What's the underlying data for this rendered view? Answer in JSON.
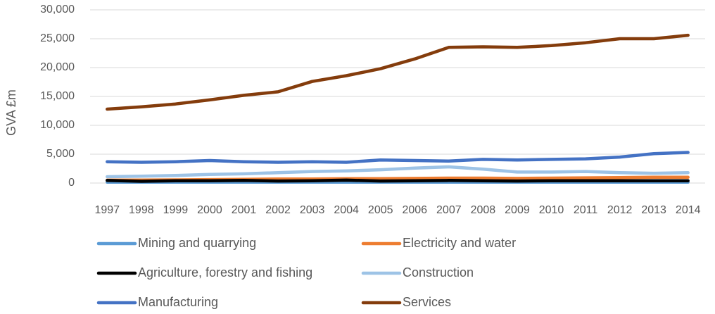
{
  "chart_data": {
    "type": "line",
    "ylabel": "GVA £m",
    "ylim": [
      0,
      30000
    ],
    "y_ticks": [
      "0",
      "5,000",
      "10,000",
      "15,000",
      "20,000",
      "25,000",
      "30,000"
    ],
    "y_tick_values": [
      0,
      5000,
      10000,
      15000,
      20000,
      25000,
      30000
    ],
    "grid": true,
    "legend_placement": "bottom",
    "categories": [
      "1997",
      "1998",
      "1999",
      "2000",
      "2001",
      "2002",
      "2003",
      "2004",
      "2005",
      "2006",
      "2007",
      "2008",
      "2009",
      "2010",
      "2011",
      "2012",
      "2013",
      "2014"
    ],
    "series": [
      {
        "name": "Mining and quarrying",
        "color": "#5b9bd5",
        "values": [
          150,
          150,
          150,
          150,
          150,
          150,
          150,
          150,
          150,
          150,
          150,
          150,
          150,
          150,
          150,
          150,
          150,
          150
        ]
      },
      {
        "name": "Electricity and water",
        "color": "#ed7d31",
        "values": [
          500,
          520,
          550,
          600,
          650,
          700,
          700,
          750,
          750,
          800,
          850,
          850,
          800,
          850,
          900,
          950,
          1000,
          1000
        ]
      },
      {
        "name": "Agriculture, forestry and fishing",
        "color": "#000000",
        "values": [
          450,
          300,
          400,
          400,
          450,
          350,
          400,
          500,
          350,
          400,
          450,
          400,
          350,
          400,
          400,
          400,
          400,
          400
        ]
      },
      {
        "name": "Construction",
        "color": "#9dc3e6",
        "values": [
          1100,
          1200,
          1300,
          1500,
          1600,
          1800,
          2000,
          2100,
          2300,
          2600,
          2800,
          2400,
          1900,
          1900,
          2000,
          1800,
          1700,
          1800
        ]
      },
      {
        "name": "Manufacturing",
        "color": "#4472c4",
        "values": [
          3700,
          3600,
          3700,
          3900,
          3700,
          3600,
          3700,
          3600,
          4000,
          3900,
          3800,
          4100,
          4000,
          4100,
          4200,
          4500,
          5100,
          5300
        ]
      },
      {
        "name": "Services",
        "color": "#843c0c",
        "values": [
          12800,
          13200,
          13700,
          14400,
          15200,
          15800,
          17600,
          18600,
          19800,
          21500,
          23500,
          23600,
          23500,
          23800,
          24300,
          25000,
          25000,
          25600
        ]
      }
    ]
  }
}
